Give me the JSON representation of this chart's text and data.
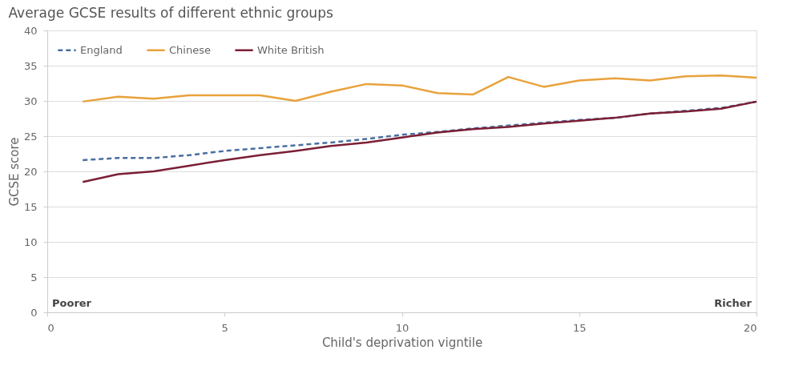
{
  "chart_data": {
    "type": "line",
    "title": "Average  GCSE results of different ethnic groups",
    "xlabel": "Child's deprivation vigntile",
    "ylabel": "GCSE score",
    "x": [
      1,
      2,
      3,
      4,
      5,
      6,
      7,
      8,
      9,
      10,
      11,
      12,
      13,
      14,
      15,
      16,
      17,
      18,
      19,
      20
    ],
    "series": [
      {
        "name": "England",
        "color": "#4a6fa0",
        "line_style": "dashed",
        "values": [
          21.6,
          21.9,
          21.9,
          22.3,
          22.9,
          23.3,
          23.7,
          24.1,
          24.6,
          25.2,
          25.6,
          26.1,
          26.5,
          26.9,
          27.3,
          27.6,
          28.2,
          28.6,
          29.0,
          29.9
        ]
      },
      {
        "name": "Chinese",
        "color": "#e8a23c",
        "line_style": "solid",
        "values": [
          29.9,
          30.6,
          30.3,
          30.8,
          30.8,
          30.8,
          30.0,
          31.3,
          32.4,
          32.2,
          31.1,
          30.9,
          33.4,
          32.0,
          32.9,
          33.2,
          32.9,
          33.5,
          33.6,
          33.3
        ]
      },
      {
        "name": "White British",
        "color": "#7b1f35",
        "line_style": "solid",
        "values": [
          18.5,
          19.6,
          20.0,
          20.8,
          21.6,
          22.3,
          22.9,
          23.6,
          24.1,
          24.8,
          25.5,
          26.0,
          26.3,
          26.8,
          27.2,
          27.6,
          28.2,
          28.5,
          28.9,
          29.9
        ]
      }
    ],
    "xlim": [
      0,
      20
    ],
    "xticks": [
      0,
      5,
      10,
      15,
      20
    ],
    "ylim": [
      0,
      40
    ],
    "yticks": [
      0,
      5,
      10,
      15,
      20,
      25,
      30,
      35,
      40
    ],
    "grid": "y",
    "legend": "top left",
    "annotations": [
      "Poorer",
      "Richer"
    ]
  }
}
